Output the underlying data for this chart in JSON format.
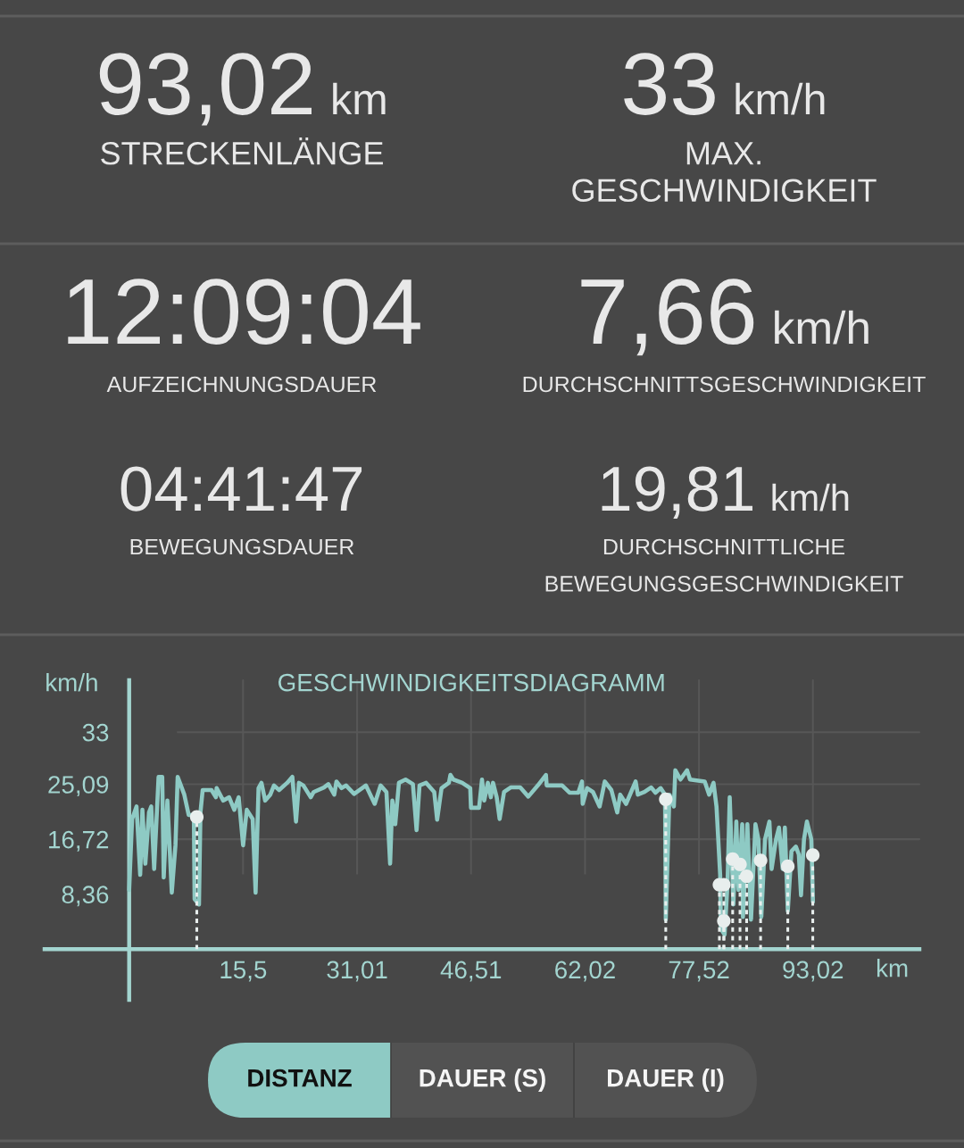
{
  "chart_data": [
    {
      "type": "other",
      "annotations": [
        "93,02 km",
        "STRECKENLÄNGE",
        "33 km/h",
        "MAX. GESCHWINDIGKEIT",
        "12:09:04",
        "AUFZEICHNUNGSDAUER",
        "7,66 km/h",
        "DURCHSCHNITTSGESCHWINDIGKEIT",
        "04:41:47",
        "BEWEGUNGSDAUER",
        "19,81 km/h",
        "DURCHSCHNITTLICHE BEWEGUNGSGESCHWINDIGKEIT"
      ]
    },
    {
      "type": "line",
      "title": "GESCHWINDIGKEITSDIAGRAMM",
      "xlabel": "km",
      "ylabel": "km/h",
      "xlim": [
        -11.5,
        107.5
      ],
      "ylim": [
        -7.7,
        40.9
      ],
      "xticks": [
        {
          "value": 15.5,
          "label": "15,5"
        },
        {
          "value": 31.01,
          "label": "31,01"
        },
        {
          "value": 46.51,
          "label": "46,51"
        },
        {
          "value": 62.02,
          "label": "62,02"
        },
        {
          "value": 77.52,
          "label": "77,52"
        },
        {
          "value": 93.02,
          "label": "93,02"
        }
      ],
      "yticks": [
        {
          "value": 8.36,
          "label": "8,36"
        },
        {
          "value": 16.72,
          "label": "16,72"
        },
        {
          "value": 25.09,
          "label": "25,09"
        },
        33
      ],
      "grid": true,
      "series": [
        {
          "type": "line",
          "color": "#8ecac4",
          "x": [
            0,
            0.4,
            1.0,
            1.5,
            1.8,
            2.2,
            2.7,
            3.0,
            3.4,
            4.0,
            4.5,
            4.7,
            5.2,
            5.8,
            6.3,
            6.6,
            7.5,
            8.1,
            8.8,
            8.9,
            9.5,
            9.7,
            10.0,
            11.2,
            11.8,
            11.9,
            12.8,
            13.6,
            14.3,
            14.9,
            15.5,
            16.0,
            16.8,
            17.2,
            17.6,
            18.0,
            18.5,
            19.2,
            19.7,
            20.4,
            21.5,
            22.2,
            22.7,
            23.1,
            23.7,
            24.7,
            25.1,
            26.5,
            27.1,
            27.9,
            28.2,
            28.9,
            29.5,
            30.6,
            32.2,
            33.4,
            34.2,
            35.0,
            35.5,
            35.8,
            36.2,
            36.7,
            37.6,
            38.6,
            39.1,
            39.5,
            40.4,
            41.5,
            41.9,
            42.5,
            43.5,
            43.7,
            44.1,
            45.3,
            46.4,
            46.5,
            47.6,
            48.0,
            48.3,
            48.8,
            49.2,
            49.5,
            50.0,
            50.4,
            51.0,
            51.9,
            53.2,
            54.3,
            55.6,
            56.7,
            56.8,
            58.9,
            59.9,
            61.1,
            61.6,
            61.7,
            62.3,
            63.1,
            64.0,
            64.7,
            65.6,
            66.4,
            66.8,
            67.6,
            68.9,
            69.2,
            70.1,
            71.0,
            71.6,
            72.3,
            72.9,
            73.0,
            73.5,
            74.1,
            74.3,
            75.0,
            75.9,
            76.3,
            78.3,
            78.9,
            79.5,
            79.9,
            80.4,
            80.5,
            81.0,
            81.4,
            81.7,
            82.2,
            82.6,
            82.9,
            83.4,
            83.5,
            84.1,
            84.6,
            85.2,
            85.6,
            86.0,
            86.5,
            87.1,
            87.4,
            88.0,
            88.4,
            88.9,
            89.2,
            89.6,
            90.1,
            90.7,
            91.1,
            91.4,
            91.8,
            92.2,
            92.8,
            93.02
          ],
          "values": [
            9.0,
            19.8,
            21.7,
            11.3,
            21.2,
            13.0,
            20.8,
            21.7,
            12.2,
            26.2,
            26.2,
            10.9,
            22.6,
            8.6,
            15.8,
            26.2,
            23.5,
            20.4,
            20.4,
            7.6,
            6.8,
            20.8,
            24.2,
            24.2,
            23.1,
            24.5,
            22.6,
            23.1,
            21.2,
            23.1,
            15.8,
            21.2,
            19.8,
            8.6,
            24.5,
            25.3,
            22.6,
            23.5,
            24.9,
            24.2,
            25.3,
            26.2,
            19.4,
            25.3,
            24.9,
            23.1,
            23.9,
            24.6,
            25.1,
            23.5,
            25.5,
            24.5,
            24.9,
            23.6,
            24.9,
            22.1,
            24.9,
            23.9,
            13.0,
            22.6,
            19.0,
            25.3,
            25.8,
            25.1,
            18.1,
            24.9,
            25.3,
            23.9,
            19.7,
            24.5,
            25.3,
            26.5,
            25.8,
            25.3,
            24.5,
            21.5,
            21.5,
            25.8,
            22.6,
            25.3,
            23.1,
            25.3,
            23.1,
            19.8,
            23.9,
            24.6,
            24.6,
            23.2,
            24.9,
            26.5,
            24.9,
            24.9,
            23.8,
            23.8,
            25.5,
            22.1,
            24.5,
            23.9,
            21.7,
            25.5,
            24.2,
            20.8,
            23.5,
            22.1,
            25.5,
            23.5,
            23.9,
            24.6,
            23.8,
            24.5,
            23.5,
            4.5,
            23.5,
            21.7,
            27.2,
            25.8,
            27.2,
            25.8,
            25.5,
            23.5,
            25.3,
            21.7,
            11.3,
            3.1,
            2.2,
            9.9,
            23.1,
            6.8,
            19.4,
            9.0,
            19.0,
            4.9,
            19.0,
            4.5,
            19.0,
            16.7,
            4.9,
            16.7,
            19.4,
            12.2,
            16.7,
            18.5,
            12.2,
            18.5,
            5.8,
            14.9,
            15.6,
            14.4,
            8.2,
            16.7,
            19.4,
            16.7,
            7.2
          ]
        },
        {
          "type": "lollipop",
          "color": "#e8eeed",
          "marker": "circle",
          "line_style": "dotted",
          "x": [
            9.2,
            73.0,
            80.3,
            80.9,
            80.9,
            82.1,
            83.1,
            84.0,
            85.9,
            89.6,
            93.0
          ],
          "values": [
            20.1,
            22.8,
            9.8,
            9.8,
            4.3,
            13.7,
            12.9,
            11.1,
            13.5,
            12.6,
            14.3
          ]
        }
      ]
    },
    {
      "type": "other",
      "categories": [
        "DISTANZ",
        "DAUER (S)",
        "DAUER (I)"
      ],
      "colors": [
        "#8ecac4",
        "#525252",
        "#525252"
      ]
    }
  ]
}
